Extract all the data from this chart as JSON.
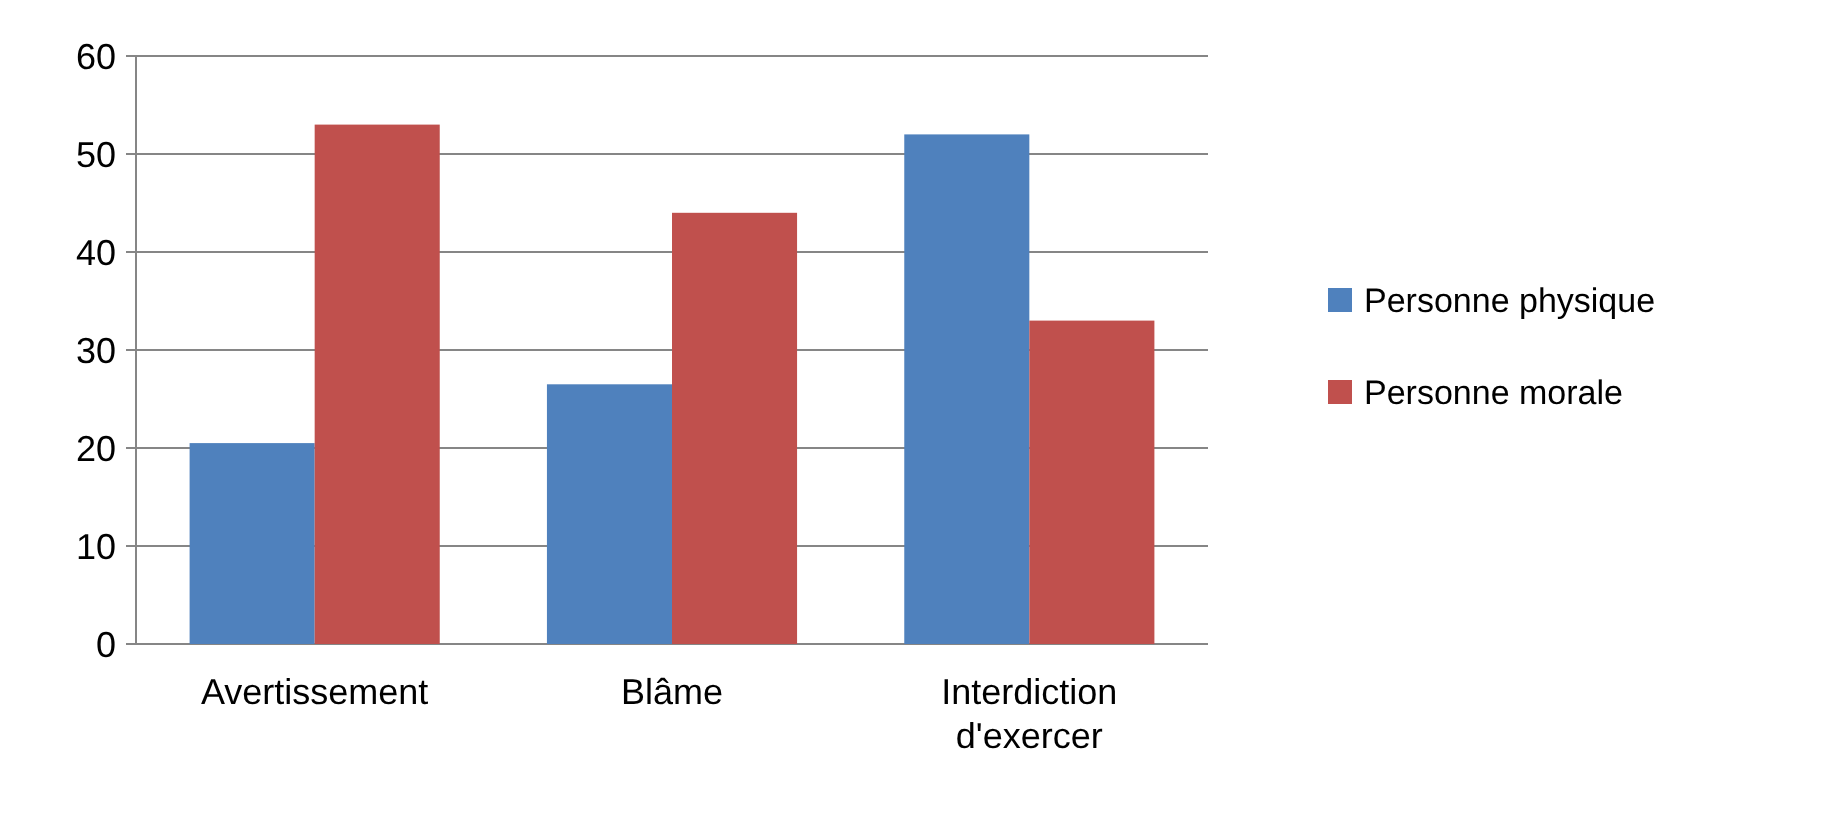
{
  "chart_data": {
    "type": "bar",
    "categories": [
      "Avertissement",
      "Blâme",
      "Interdiction d'exercer"
    ],
    "series": [
      {
        "name": "Personne physique",
        "color": "#4f81bd",
        "values": [
          20.5,
          26.5,
          52
        ]
      },
      {
        "name": "Personne morale",
        "color": "#c0504d",
        "values": [
          53,
          44,
          33
        ]
      }
    ],
    "ylim": [
      0,
      60
    ],
    "yticks": [
      0,
      10,
      20,
      30,
      40,
      50,
      60
    ],
    "grid": "y",
    "legend": "right"
  }
}
